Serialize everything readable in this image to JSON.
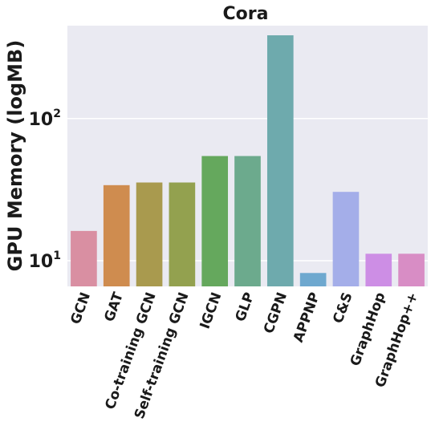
{
  "chart_data": {
    "type": "bar",
    "title": "Cora",
    "xlabel": "",
    "ylabel": "GPU Memory (logMB)",
    "y_scale": "log",
    "ylim": [
      6.6,
      450
    ],
    "y_ticks": [
      {
        "value": 10,
        "base": "10",
        "exp": "1"
      },
      {
        "value": 100,
        "base": "10",
        "exp": "2"
      }
    ],
    "grid": true,
    "background": "#eaeaf2",
    "categories": [
      "GCN",
      "GAT",
      "Co-training GCN",
      "Self-training GCN",
      "IGCN",
      "GLP",
      "CGPN",
      "APPNP",
      "C&S",
      "GraphHop",
      "GraphHop++"
    ],
    "values": [
      16.2,
      34.0,
      35.5,
      35.5,
      54.5,
      54.5,
      385.0,
      8.2,
      30.5,
      11.2,
      11.2
    ],
    "colors": [
      "#d98fa2",
      "#cf8c4f",
      "#a99a4e",
      "#93a14f",
      "#65a85d",
      "#6caa8d",
      "#6eaaad",
      "#6ea8cf",
      "#a4aee9",
      "#cd8ee5",
      "#d88dc5"
    ]
  }
}
